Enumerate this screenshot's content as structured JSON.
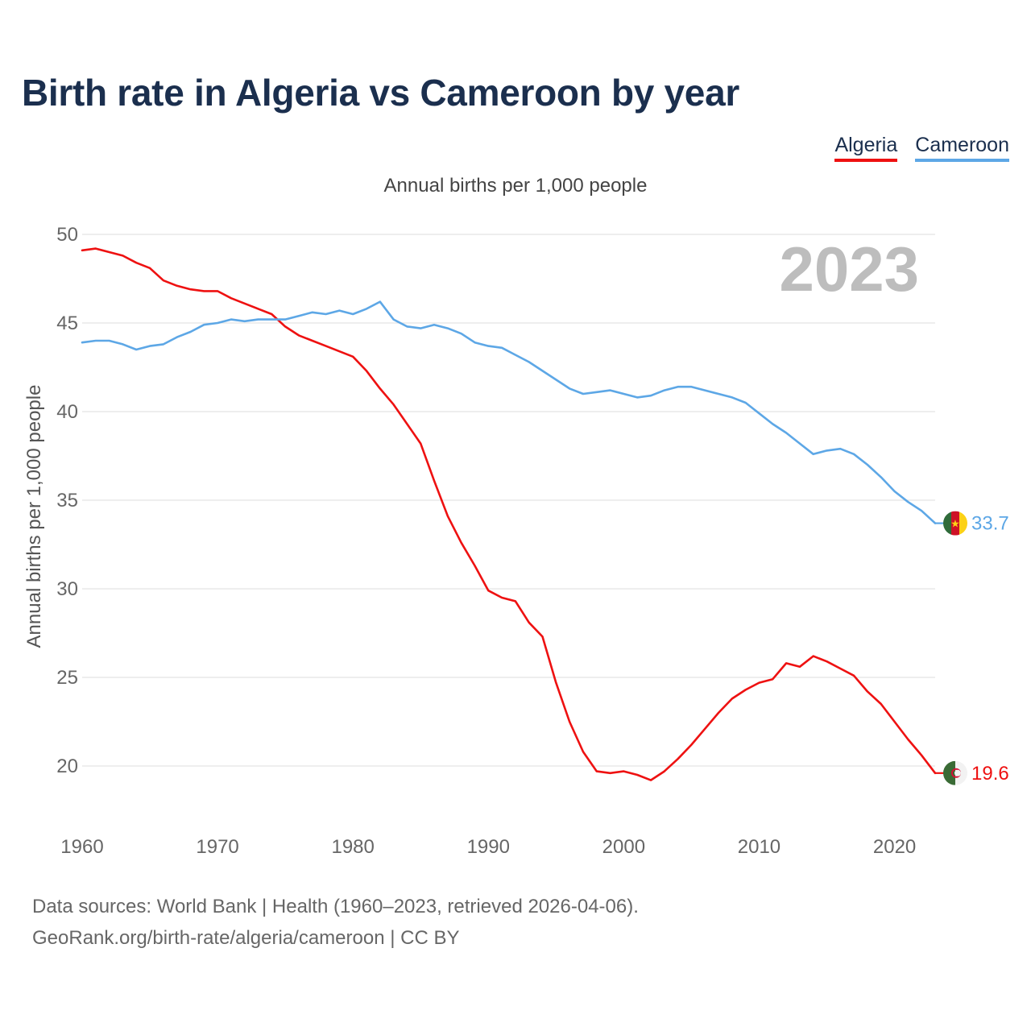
{
  "header": {
    "title": "Birth rate in Algeria vs Cameroon by year",
    "subtitle": "Annual births per 1,000 people"
  },
  "footer": {
    "line1": "Data sources: World Bank | Health (1960–2023, retrieved 2026-04-06).",
    "line2": "GeoRank.org/birth-rate/algeria/cameroon | CC BY"
  },
  "chart_data": {
    "type": "line",
    "title": "Birth rate in Algeria vs Cameroon by year",
    "ylabel": "Annual births per 1,000 people",
    "xlabel": "",
    "year_label": "2023",
    "xlim": [
      1960,
      2023
    ],
    "ylim": [
      17,
      50
    ],
    "x_ticks": [
      1960,
      1970,
      1980,
      1990,
      2000,
      2010,
      2020
    ],
    "y_ticks": [
      20,
      25,
      30,
      35,
      40,
      45,
      50
    ],
    "grid": true,
    "legend_position": "top-right",
    "x": [
      1960,
      1961,
      1962,
      1963,
      1964,
      1965,
      1966,
      1967,
      1968,
      1969,
      1970,
      1971,
      1972,
      1973,
      1974,
      1975,
      1976,
      1977,
      1978,
      1979,
      1980,
      1981,
      1982,
      1983,
      1984,
      1985,
      1986,
      1987,
      1988,
      1989,
      1990,
      1991,
      1992,
      1993,
      1994,
      1995,
      1996,
      1997,
      1998,
      1999,
      2000,
      2001,
      2002,
      2003,
      2004,
      2005,
      2006,
      2007,
      2008,
      2009,
      2010,
      2011,
      2012,
      2013,
      2014,
      2015,
      2016,
      2017,
      2018,
      2019,
      2020,
      2021,
      2022,
      2023
    ],
    "series": [
      {
        "name": "Algeria",
        "color": "#ee1111",
        "end_label": "19.6",
        "flag": "algeria-flag",
        "values": [
          49.1,
          49.2,
          49.0,
          48.8,
          48.4,
          48.1,
          47.4,
          47.1,
          46.9,
          46.8,
          46.8,
          46.4,
          46.1,
          45.8,
          45.5,
          44.8,
          44.3,
          44.0,
          43.7,
          43.4,
          43.1,
          42.3,
          41.3,
          40.4,
          39.3,
          38.2,
          36.1,
          34.1,
          32.6,
          31.3,
          29.9,
          29.5,
          29.3,
          28.1,
          27.3,
          24.7,
          22.5,
          20.8,
          19.7,
          19.6,
          19.7,
          19.5,
          19.2,
          19.7,
          20.4,
          21.2,
          22.1,
          23.0,
          23.8,
          24.3,
          24.7,
          24.9,
          25.8,
          25.6,
          26.2,
          25.9,
          25.5,
          25.1,
          24.2,
          23.5,
          22.5,
          21.5,
          20.6,
          19.6
        ]
      },
      {
        "name": "Cameroon",
        "color": "#5da7e6",
        "end_label": "33.7",
        "flag": "cameroon-flag",
        "values": [
          43.9,
          44.0,
          44.0,
          43.8,
          43.5,
          43.7,
          43.8,
          44.2,
          44.5,
          44.9,
          45.0,
          45.2,
          45.1,
          45.2,
          45.2,
          45.2,
          45.4,
          45.6,
          45.5,
          45.7,
          45.5,
          45.8,
          46.2,
          45.2,
          44.8,
          44.7,
          44.9,
          44.7,
          44.4,
          43.9,
          43.7,
          43.6,
          43.2,
          42.8,
          42.3,
          41.8,
          41.3,
          41.0,
          41.1,
          41.2,
          41.0,
          40.8,
          40.9,
          41.2,
          41.4,
          41.4,
          41.2,
          41.0,
          40.8,
          40.5,
          39.9,
          39.3,
          38.8,
          38.2,
          37.6,
          37.8,
          37.9,
          37.6,
          37.0,
          36.3,
          35.5,
          34.9,
          34.4,
          33.7
        ]
      }
    ]
  }
}
